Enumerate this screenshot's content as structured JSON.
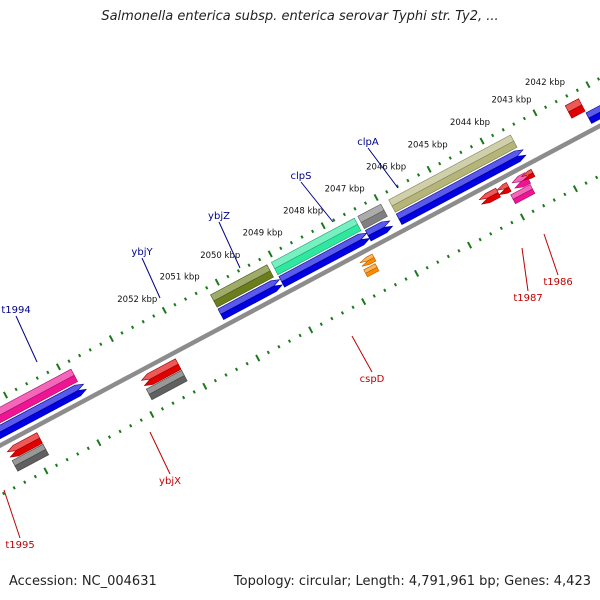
{
  "title": "Salmonella enterica subsp. enterica serovar Typhi str. Ty2, ...",
  "footer": {
    "accession": "Accession: NC_004631",
    "summary": "Topology: circular; Length: 4,791,961 bp; Genes: 4,423"
  },
  "kbp_labels": [
    "2042 kbp",
    "2043 kbp",
    "2044 kbp",
    "2045 kbp",
    "2046 kbp",
    "2047 kbp",
    "2048 kbp",
    "2049 kbp",
    "2050 kbp",
    "2051 kbp",
    "2052 kbp"
  ],
  "forward_genes": [
    {
      "label": "clpA",
      "color": "#b5b57a"
    },
    {
      "label": "clpS",
      "color": "#808080"
    },
    {
      "label": "ybjZ",
      "color": "#2ee8a0"
    },
    {
      "label": "ybjY",
      "color": "#6b7d1c"
    },
    {
      "label": "t1994",
      "color": "#ee1493"
    }
  ],
  "reverse_genes": [
    {
      "label": "t1986",
      "color": "#ee1493"
    },
    {
      "label": "t1987",
      "color": "#e00000"
    },
    {
      "label": "cspD",
      "color": "#ff8c00"
    },
    {
      "label": "ybjX",
      "color": "#e00000"
    },
    {
      "label": "t1995",
      "color": "#e00000"
    }
  ],
  "colors": {
    "backbone": "#8c8c8c",
    "tick": "#1a7a1a",
    "forward_label": "#00008b",
    "reverse_label": "#c00000",
    "cds_forward": "#0000e0",
    "cds_reverse": "#606060"
  }
}
